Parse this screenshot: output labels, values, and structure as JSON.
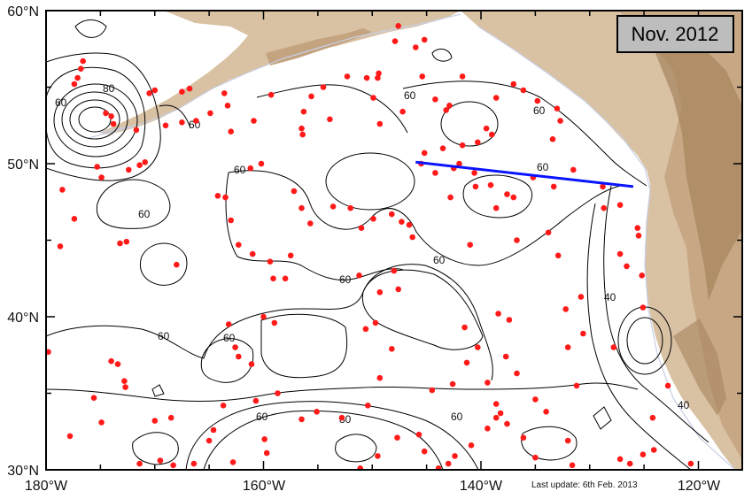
{
  "title": "Nov. 2012",
  "update_note": "Last update: 6th Feb. 2013",
  "colors": {
    "ocean": "#ffffff",
    "land_light": "#d9c1a3",
    "land_mid": "#c4a37f",
    "land_dark": "#a5835d",
    "coast": "#c7cfe6",
    "contour": "#000000",
    "float_dot": "#ff1a1a",
    "section_line": "#0a14ff",
    "title_box": "#bdbdbd"
  },
  "axes": {
    "lon_ticks": [
      "180°W",
      "160°W",
      "140°W",
      "120°W"
    ],
    "lat_ticks": [
      "30°N",
      "40°N",
      "50°N",
      "60°N"
    ]
  },
  "contour_labels": [
    "80",
    "60",
    "60",
    "60",
    "60",
    "60",
    "60",
    "60",
    "60",
    "60",
    "60",
    "60",
    "60",
    "40",
    "40",
    "80",
    "60"
  ],
  "section_line": {
    "start_lon": -146.0,
    "start_lat": 50.1,
    "end_lon": -126.0,
    "end_lat": 48.5
  },
  "floats": [
    [
      -177.4,
      55.2
    ],
    [
      -177.1,
      55.6
    ],
    [
      -176.8,
      56.2
    ],
    [
      -176.6,
      56.7
    ],
    [
      -178.5,
      48.3
    ],
    [
      -177.4,
      46.4
    ],
    [
      -178.7,
      44.6
    ],
    [
      -174.5,
      53.3
    ],
    [
      -174.0,
      53.1
    ],
    [
      -173.8,
      52.6
    ],
    [
      -175.3,
      49.8
    ],
    [
      -174.9,
      49.1
    ],
    [
      -171.7,
      52.2
    ],
    [
      -170.5,
      54.6
    ],
    [
      -170.0,
      54.8
    ],
    [
      -169.0,
      52.5
    ],
    [
      -167.5,
      52.7
    ],
    [
      -170.9,
      50.1
    ],
    [
      -171.4,
      49.9
    ],
    [
      -172.4,
      49.6
    ],
    [
      -173.2,
      44.8
    ],
    [
      -172.6,
      44.9
    ],
    [
      -168.0,
      43.4
    ],
    [
      -174.0,
      37.1
    ],
    [
      -173.4,
      36.9
    ],
    [
      -172.8,
      35.8
    ],
    [
      -172.7,
      35.4
    ],
    [
      -175.6,
      34.7
    ],
    [
      -174.9,
      33.1
    ],
    [
      -177.8,
      32.2
    ],
    [
      -179.8,
      37.7
    ],
    [
      -170.0,
      33.2
    ],
    [
      -168.5,
      33.4
    ],
    [
      -169.5,
      30.6
    ],
    [
      -168.3,
      30.3
    ],
    [
      -166.4,
      30.4
    ],
    [
      -171.4,
      30.4
    ],
    [
      -164.6,
      32.6
    ],
    [
      -163.7,
      34.2
    ],
    [
      -165.0,
      31.9
    ],
    [
      -162.8,
      30.5
    ],
    [
      -163.2,
      39.5
    ],
    [
      -162.6,
      38.0
    ],
    [
      -162.3,
      37.4
    ],
    [
      -161.1,
      36.9
    ],
    [
      -160.7,
      34.5
    ],
    [
      -159.9,
      32.0
    ],
    [
      -159.7,
      31.1
    ],
    [
      -158.7,
      35.0
    ],
    [
      -155.1,
      33.8
    ],
    [
      -156.5,
      33.3
    ],
    [
      -160.0,
      40.0
    ],
    [
      -159.0,
      39.6
    ],
    [
      -159.1,
      42.5
    ],
    [
      -158.0,
      42.5
    ],
    [
      -163.5,
      47.8
    ],
    [
      -164.2,
      47.9
    ],
    [
      -163.0,
      46.3
    ],
    [
      -161.2,
      49.7
    ],
    [
      -157.2,
      48.2
    ],
    [
      -156.5,
      47.1
    ],
    [
      -155.7,
      46.1
    ],
    [
      -153.6,
      47.2
    ],
    [
      -152.0,
      47.1
    ],
    [
      -151.0,
      45.8
    ],
    [
      -149.9,
      46.4
    ],
    [
      -148.2,
      46.7
    ],
    [
      -147.3,
      46.2
    ],
    [
      -146.6,
      46.0
    ],
    [
      -151.2,
      42.7
    ],
    [
      -148.0,
      43.0
    ],
    [
      -147.6,
      41.8
    ],
    [
      -149.3,
      41.6
    ],
    [
      -146.3,
      45.2
    ],
    [
      -162.3,
      44.7
    ],
    [
      -161.0,
      44.1
    ],
    [
      -159.4,
      43.6
    ],
    [
      -157.5,
      44.0
    ],
    [
      -149.7,
      39.6
    ],
    [
      -150.6,
      39.2
    ],
    [
      -148.2,
      37.9
    ],
    [
      -149.3,
      36.0
    ],
    [
      -150.4,
      34.2
    ],
    [
      -152.8,
      33.4
    ],
    [
      -147.7,
      32.1
    ],
    [
      -149.5,
      30.9
    ],
    [
      -151.1,
      30.1
    ],
    [
      -145.7,
      32.3
    ],
    [
      -145.2,
      31.2
    ],
    [
      -143.9,
      30.1
    ],
    [
      -143.0,
      30.4
    ],
    [
      -142.4,
      30.9
    ],
    [
      -140.9,
      31.6
    ],
    [
      -139.4,
      32.7
    ],
    [
      -138.6,
      33.4
    ],
    [
      -137.6,
      33.0
    ],
    [
      -136.1,
      32.1
    ],
    [
      -135.0,
      30.8
    ],
    [
      -144.5,
      35.2
    ],
    [
      -142.6,
      35.6
    ],
    [
      -139.4,
      35.7
    ],
    [
      -138.6,
      34.3
    ],
    [
      -138.2,
      33.7
    ],
    [
      -137.7,
      37.4
    ],
    [
      -140.3,
      38.0
    ],
    [
      -141.3,
      37.0
    ],
    [
      -141.5,
      39.3
    ],
    [
      -138.4,
      40.2
    ],
    [
      -137.4,
      39.8
    ],
    [
      -136.7,
      36.3
    ],
    [
      -135.0,
      34.6
    ],
    [
      -134.0,
      33.8
    ],
    [
      -132.0,
      31.9
    ],
    [
      -131.6,
      30.3
    ],
    [
      -131.2,
      35.5
    ],
    [
      -130.6,
      38.9
    ],
    [
      -130.8,
      41.3
    ],
    [
      -132.2,
      40.5
    ],
    [
      -132.0,
      38.0
    ],
    [
      -128.5,
      29.8
    ],
    [
      -127.2,
      30.7
    ],
    [
      -126.3,
      30.4
    ],
    [
      -125.1,
      31.0
    ],
    [
      -124.1,
      31.3
    ],
    [
      -124.2,
      33.4
    ],
    [
      -122.8,
      35.5
    ],
    [
      -120.7,
      30.4
    ],
    [
      -127.8,
      38.0
    ],
    [
      -125.1,
      40.6
    ],
    [
      -125.2,
      42.7
    ],
    [
      -126.6,
      43.3
    ],
    [
      -127.2,
      44.1
    ],
    [
      -128.7,
      47.1
    ],
    [
      -127.2,
      47.3
    ],
    [
      -125.6,
      45.8
    ],
    [
      -125.5,
      45.3
    ],
    [
      -128.8,
      48.5
    ],
    [
      -131.5,
      49.6
    ],
    [
      -133.3,
      48.5
    ],
    [
      -133.8,
      45.5
    ],
    [
      -132.9,
      44.0
    ],
    [
      -137.0,
      47.8
    ],
    [
      -137.6,
      48.0
    ],
    [
      -139.1,
      48.6
    ],
    [
      -138.6,
      47.1
    ],
    [
      -136.7,
      45.0
    ],
    [
      -141.0,
      44.7
    ],
    [
      -142.8,
      47.8
    ],
    [
      -140.5,
      48.5
    ],
    [
      -140.6,
      49.4
    ],
    [
      -142.5,
      49.7
    ],
    [
      -144.2,
      49.4
    ],
    [
      -145.2,
      50.7
    ],
    [
      -143.5,
      51.0
    ],
    [
      -141.7,
      51.2
    ],
    [
      -140.3,
      51.4
    ],
    [
      -135.2,
      49.1
    ],
    [
      -133.4,
      51.6
    ],
    [
      -133.0,
      53.6
    ],
    [
      -132.7,
      52.8
    ],
    [
      -134.8,
      54.1
    ],
    [
      -136.1,
      54.8
    ],
    [
      -137.0,
      55.2
    ],
    [
      -141.7,
      55.7
    ],
    [
      -143.2,
      53.5
    ],
    [
      -145.4,
      55.7
    ],
    [
      -147.2,
      53.4
    ],
    [
      -149.3,
      52.6
    ],
    [
      -149.9,
      54.3
    ],
    [
      -150.5,
      55.6
    ],
    [
      -153.9,
      52.9
    ],
    [
      -154.5,
      55.0
    ],
    [
      -152.3,
      55.7
    ],
    [
      -155.6,
      54.4
    ],
    [
      -156.3,
      53.4
    ],
    [
      -159.3,
      54.5
    ],
    [
      -160.9,
      52.8
    ],
    [
      -160.2,
      50.0
    ],
    [
      -163.0,
      52.1
    ],
    [
      -163.3,
      53.8
    ],
    [
      -163.6,
      54.6
    ],
    [
      -164.9,
      53.3
    ],
    [
      -166.2,
      52.8
    ],
    [
      -166.8,
      54.9
    ],
    [
      -167.5,
      54.7
    ],
    [
      -156.5,
      52.3
    ],
    [
      -156.4,
      51.9
    ],
    [
      -146.0,
      57.6
    ],
    [
      -147.9,
      58.0
    ],
    [
      -147.6,
      59.0
    ],
    [
      -149.4,
      55.9
    ],
    [
      -149.5,
      55.6
    ],
    [
      -142.9,
      53.8
    ],
    [
      -139.0,
      51.9
    ],
    [
      -139.5,
      52.3
    ],
    [
      -138.6,
      54.3
    ],
    [
      -145.2,
      58.1
    ],
    [
      -144.2,
      54.2
    ],
    [
      -142.0,
      50.0
    ],
    [
      -145.5,
      50.0
    ]
  ]
}
